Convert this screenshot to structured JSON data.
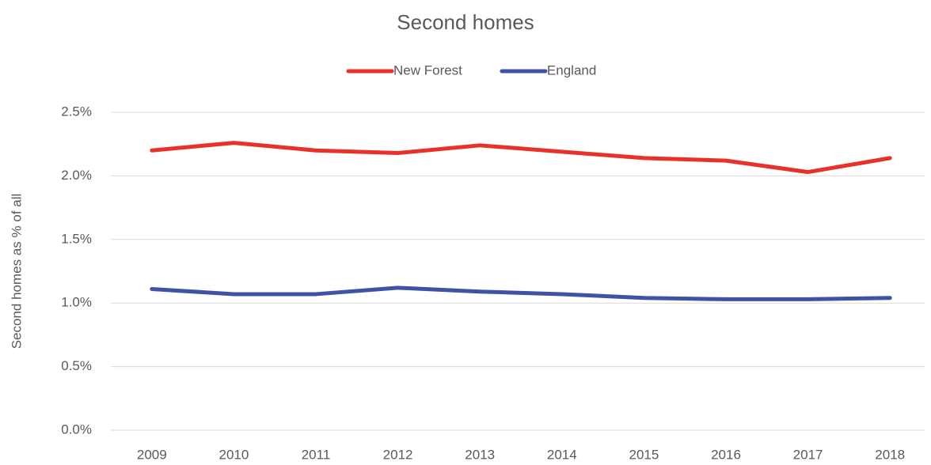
{
  "chart_data": {
    "type": "line",
    "title": "Second homes",
    "y_label": "Second homes as % of all",
    "categories": [
      "2009",
      "2010",
      "2011",
      "2012",
      "2013",
      "2014",
      "2015",
      "2016",
      "2017",
      "2018"
    ],
    "series": [
      {
        "name": "New Forest",
        "color": "#e8312a",
        "values": [
          2.2,
          2.26,
          2.2,
          2.18,
          2.24,
          2.19,
          2.14,
          2.12,
          2.03,
          2.14
        ]
      },
      {
        "name": "England",
        "color": "#3f53a4",
        "values": [
          1.11,
          1.07,
          1.07,
          1.12,
          1.09,
          1.07,
          1.04,
          1.03,
          1.03,
          1.04
        ]
      }
    ],
    "ylim": [
      0,
      2.5
    ],
    "yticks": [
      {
        "value": 0,
        "label": "0.0%"
      },
      {
        "value": 0.5,
        "label": "0.5%"
      },
      {
        "value": 1.0,
        "label": "1.0%"
      },
      {
        "value": 1.5,
        "label": "1.5%"
      },
      {
        "value": 2.0,
        "label": "2.0%"
      },
      {
        "value": 2.5,
        "label": "2.5%"
      }
    ],
    "grid": true,
    "legend": "top"
  }
}
